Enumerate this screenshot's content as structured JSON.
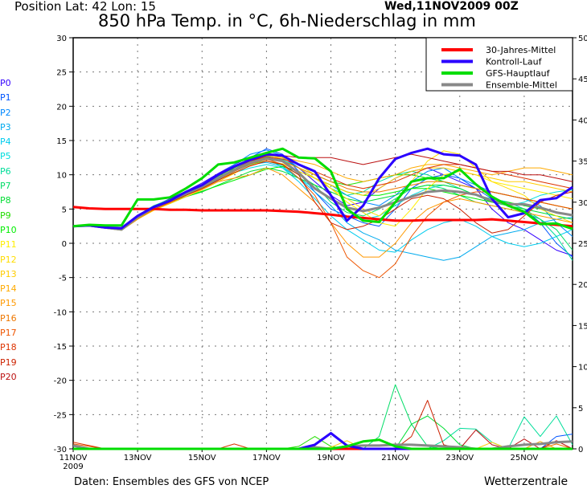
{
  "header": {
    "position": "Position  Lat: 42 Lon: 15",
    "run": "Wed,11NOV2009 00Z",
    "title": "850 hPa Temp. in °C, 6h-Niederschlag in mm"
  },
  "footer": {
    "source": "Daten: Ensembles des GFS von NCEP",
    "brand": "Wetterzentrale"
  },
  "chart_data": {
    "type": "line",
    "title": "850 hPa Temp. in °C, 6h-Niederschlag in mm",
    "grid": true,
    "legend_position": "top-right",
    "left_axis": {
      "unit": "°C",
      "range": [
        -30,
        30
      ],
      "ticks": [
        30,
        25,
        20,
        15,
        10,
        5,
        0,
        -5,
        -10,
        -15,
        -20,
        -25,
        -30
      ]
    },
    "right_axis": {
      "unit": "mm",
      "range": [
        0,
        50
      ],
      "ticks": [
        50,
        45,
        40,
        35,
        30,
        25,
        20,
        15,
        10,
        5,
        0
      ]
    },
    "x_ticks": [
      {
        "label": "11NOV",
        "sub": "2009",
        "day": 11
      },
      {
        "label": "13NOV",
        "day": 13
      },
      {
        "label": "15NOV",
        "day": 15
      },
      {
        "label": "17NOV",
        "day": 17
      },
      {
        "label": "19NOV",
        "day": 19
      },
      {
        "label": "21NOV",
        "day": 21
      },
      {
        "label": "23NOV",
        "day": 23
      },
      {
        "label": "25NOV",
        "day": 25
      }
    ],
    "x": [
      "11NOV00Z",
      "11NOV12Z",
      "12NOV00Z",
      "12NOV12Z",
      "13NOV00Z",
      "13NOV12Z",
      "14NOV00Z",
      "14NOV12Z",
      "15NOV00Z",
      "15NOV12Z",
      "16NOV00Z",
      "16NOV12Z",
      "17NOV00Z",
      "17NOV12Z",
      "18NOV00Z",
      "18NOV12Z",
      "19NOV00Z",
      "19NOV12Z",
      "20NOV00Z",
      "20NOV12Z",
      "21NOV00Z",
      "21NOV12Z",
      "22NOV00Z",
      "22NOV12Z",
      "23NOV00Z",
      "23NOV12Z",
      "24NOV00Z",
      "24NOV12Z",
      "25NOV00Z",
      "25NOV12Z",
      "26NOV00Z",
      "26NOV12Z"
    ],
    "legend": [
      {
        "name": "30-Jahres-Mittel",
        "color": "#ff0000"
      },
      {
        "name": "Kontroll-Lauf",
        "color": "#2a00ff"
      },
      {
        "name": "GFS-Hauptlauf",
        "color": "#00dd00"
      },
      {
        "name": "Ensemble-Mittel",
        "color": "#888888"
      }
    ],
    "members": [
      {
        "name": "P0",
        "color": "#3300ff",
        "temp": [
          2.5,
          2.7,
          2.4,
          2.1,
          3.9,
          5.4,
          6.5,
          7.6,
          8.8,
          10.2,
          11.5,
          12.6,
          13.2,
          12.5,
          11,
          9,
          7,
          5.5,
          6,
          8,
          9.5,
          10.5,
          11,
          10,
          9,
          8,
          5,
          3,
          2,
          0.5,
          -1,
          -1.8
        ]
      },
      {
        "name": "P1",
        "color": "#0055ff",
        "temp": [
          2.5,
          2.6,
          2.3,
          2.0,
          3.6,
          5.0,
          6.0,
          7.0,
          8.0,
          9.2,
          11,
          12.5,
          13.8,
          13,
          10.5,
          7.5,
          5,
          4,
          3,
          2.5,
          5,
          8,
          9.5,
          10,
          9.5,
          8,
          6.5,
          6,
          5,
          3,
          0,
          -2
        ],
        "precip": {
          "30": 1.5,
          "31": 1.8
        }
      },
      {
        "name": "P2",
        "color": "#0088ff",
        "temp": [
          2.5,
          2.6,
          2.2,
          2.0,
          3.9,
          5.3,
          6.3,
          7.5,
          8.6,
          10,
          11.5,
          13,
          13.6,
          12.8,
          11,
          9.5,
          8.5,
          7,
          6,
          5.5,
          7,
          9,
          10.5,
          11,
          9.5,
          8.5,
          7.5,
          7,
          6.5,
          5.5,
          3,
          1
        ]
      },
      {
        "name": "P3",
        "color": "#00aaee",
        "temp": [
          2.5,
          2.5,
          2.2,
          1.9,
          3.5,
          5.0,
          6.1,
          7.1,
          8.0,
          9.2,
          10.5,
          11.5,
          11.8,
          11.2,
          9.5,
          7.5,
          5.5,
          3,
          1.5,
          0.5,
          -1,
          -1.5,
          -2,
          -2.5,
          -2,
          -0.5,
          1,
          1.5,
          2,
          3,
          3.5,
          3.8
        ]
      },
      {
        "name": "P4",
        "color": "#00ccee",
        "temp": [
          2.5,
          2.6,
          2.2,
          2.0,
          3.7,
          5.1,
          6.0,
          7.2,
          8.2,
          9.4,
          10.8,
          12,
          12.6,
          11,
          9,
          6.5,
          4,
          2,
          0.5,
          -1,
          -1.3,
          0.5,
          2,
          3,
          3.5,
          2.5,
          1,
          0,
          -0.5,
          0,
          1,
          2
        ]
      },
      {
        "name": "P5",
        "color": "#00dddd",
        "temp": [
          2.5,
          2.6,
          2.3,
          2.1,
          4,
          5.3,
          6.3,
          7.3,
          8.1,
          9.3,
          10.3,
          11,
          11.5,
          11,
          9.5,
          8,
          6.5,
          5,
          3.5,
          4,
          5.5,
          7,
          8,
          8.5,
          8,
          7,
          6,
          5.5,
          6,
          7,
          7.5,
          7.8
        ]
      },
      {
        "name": "P6",
        "color": "#00dd99",
        "temp": [
          2.5,
          2.7,
          2.4,
          2.2,
          4.1,
          5.5,
          6.4,
          7.4,
          8.5,
          9.8,
          11,
          12,
          12.7,
          12.2,
          11,
          9.5,
          8,
          7,
          7.5,
          9,
          10,
          10.5,
          10,
          9,
          8,
          7,
          6.5,
          6,
          5,
          3.5,
          1,
          -2.5
        ],
        "precip": {
          "23": 1.0,
          "24": 2.5,
          "25": 2.4,
          "26": 0.8,
          "28": 3.9,
          "29": 1.5,
          "30": 4.0,
          "31": 0.5
        }
      },
      {
        "name": "P7",
        "color": "#00dd66",
        "temp": [
          2.5,
          2.6,
          2.3,
          2.0,
          3.8,
          5.2,
          6.2,
          7.3,
          8.3,
          9.5,
          10.6,
          11.6,
          12,
          11.4,
          10,
          8.5,
          6,
          4.5,
          4,
          5,
          6.5,
          8,
          8.5,
          8,
          7,
          6,
          5.5,
          5,
          4.5,
          3.5,
          2,
          -1
        ],
        "precip": {
          "19": 1.5,
          "20": 7.8,
          "21": 3.0,
          "22": 0.3
        }
      },
      {
        "name": "P8",
        "color": "#00dd33",
        "temp": [
          2.5,
          2.6,
          2.3,
          2.0,
          3.6,
          4.9,
          5.8,
          6.8,
          7.5,
          8.5,
          9.5,
          10.5,
          11,
          10.5,
          9.5,
          8.5,
          7.5,
          6.5,
          6,
          6.5,
          7,
          8,
          8.5,
          8.5,
          8,
          7,
          6,
          5.5,
          5,
          4.5,
          4,
          3.5
        ],
        "precip": {
          "21": 3.0,
          "22": 4.0,
          "23": 2.5,
          "24": 0.5
        }
      },
      {
        "name": "P9",
        "color": "#22dd00",
        "temp": [
          2.5,
          2.6,
          2.4,
          2.1,
          3.9,
          5.3,
          6.4,
          7.6,
          8.6,
          9.8,
          11,
          12.2,
          12.8,
          12.5,
          11.5,
          10,
          9,
          8.5,
          9,
          9.5,
          10,
          10,
          9.5,
          9,
          8.5,
          8,
          7.5,
          7,
          6.5,
          6,
          5.5,
          5
        ],
        "precip": {
          "14": 0.3,
          "15": 1.5,
          "16": 0.3
        }
      },
      {
        "name": "P10",
        "color": "#00ee00",
        "temp": [
          2.5,
          2.6,
          2.3,
          2.0,
          3.7,
          5.0,
          6.0,
          6.8,
          7.6,
          8.4,
          9.2,
          10,
          10.8,
          11.2,
          10.5,
          9.5,
          8.5,
          7.5,
          7,
          7,
          7.5,
          8,
          8,
          7.5,
          7,
          6.5,
          6,
          6,
          5.5,
          5,
          4.5,
          4
        ]
      },
      {
        "name": "P11",
        "color": "#ffee00",
        "temp": [
          2.5,
          2.6,
          2.3,
          2.0,
          3.9,
          5.2,
          6.3,
          7.4,
          8.4,
          9.6,
          10.8,
          12,
          12.8,
          12.5,
          11.5,
          10,
          8,
          6,
          4.5,
          3,
          2.5,
          5,
          8,
          10,
          10.5,
          10,
          9,
          8.5,
          8,
          7.5,
          7,
          6.5
        ]
      },
      {
        "name": "P12",
        "color": "#ffdd00",
        "temp": [
          2.5,
          2.6,
          2.3,
          2.0,
          3.8,
          5.1,
          6.2,
          7.3,
          8.3,
          9.5,
          10.6,
          11.8,
          12.3,
          12,
          11,
          9.5,
          8,
          6.5,
          5,
          4,
          6,
          9,
          12,
          13.5,
          13,
          11,
          9,
          8,
          7,
          5,
          4,
          3
        ]
      },
      {
        "name": "P13",
        "color": "#ffcc00",
        "temp": [
          2.5,
          2.6,
          2.2,
          1.9,
          3.5,
          4.8,
          5.8,
          6.8,
          7.8,
          9,
          10.2,
          11.4,
          12,
          11.6,
          10.5,
          9.5,
          8.5,
          7.5,
          7,
          8,
          9.5,
          10.5,
          11,
          11,
          10.5,
          10,
          9.5,
          9,
          9,
          8.5,
          8,
          7.5
        ],
        "precip": {
          "16": 0.2,
          "17": 1.0,
          "26": 0.8
        }
      },
      {
        "name": "P14",
        "color": "#ffaa00",
        "temp": [
          2.5,
          2.6,
          2.3,
          2.0,
          3.7,
          5.0,
          6.0,
          7.0,
          8.0,
          9.2,
          10.5,
          11.7,
          12.4,
          12.6,
          12,
          11.5,
          10.5,
          9.5,
          9,
          9.5,
          10,
          11,
          11.5,
          11.5,
          11,
          10.5,
          10,
          10.5,
          11,
          11,
          10.5,
          10
        ],
        "precip": {
          "29": 0.9
        }
      },
      {
        "name": "P15",
        "color": "#ff9900",
        "temp": [
          2.5,
          2.5,
          2.2,
          1.9,
          3.5,
          4.9,
          5.9,
          7.0,
          7.9,
          9.0,
          9.5,
          10,
          11,
          10,
          8,
          6,
          3,
          0,
          -2,
          -2,
          0,
          3,
          5,
          6,
          6.5,
          6,
          5.5,
          5,
          4.5,
          4,
          3.5,
          3
        ]
      },
      {
        "name": "P16",
        "color": "#ee7700",
        "temp": [
          2.5,
          2.6,
          2.3,
          2.0,
          3.8,
          5.1,
          6.2,
          7.2,
          8.2,
          9.4,
          10.5,
          11.6,
          12.2,
          12,
          11,
          10,
          9,
          8,
          7.5,
          7.5,
          8,
          8.5,
          9,
          9,
          8.5,
          8,
          7.5,
          7,
          6.5,
          6,
          5.5,
          5
        ],
        "precip": {
          "30": 0.6
        }
      },
      {
        "name": "P17",
        "color": "#ee5500",
        "temp": [
          2.5,
          2.6,
          2.3,
          2.0,
          3.9,
          5.3,
          6.3,
          7.4,
          8.4,
          9.6,
          10.8,
          11.8,
          12.3,
          11.5,
          9.5,
          7,
          3,
          -2,
          -4,
          -5,
          -3,
          1,
          4,
          6,
          7,
          7.5,
          7.5,
          7,
          6.5,
          6,
          5.5,
          5
        ],
        "precip": {
          "0": 0.6,
          "1": 0.3
        }
      },
      {
        "name": "P18",
        "color": "#dd3300",
        "temp": [
          2.5,
          2.6,
          2.3,
          2.0,
          3.8,
          5.2,
          6.3,
          7.4,
          8.4,
          9.6,
          10.8,
          12,
          12.6,
          12.3,
          11.5,
          10.5,
          9.5,
          8.5,
          8,
          8.5,
          9,
          10,
          11,
          11.5,
          11.5,
          11,
          10.5,
          10,
          9.5,
          9,
          8.5,
          8
        ],
        "precip": {
          "0": 0.8,
          "1": 0.4,
          "10": 0.6
        }
      },
      {
        "name": "P19",
        "color": "#cc2200",
        "temp": [
          2.5,
          2.6,
          2.3,
          2.0,
          3.7,
          5.0,
          6.0,
          7.0,
          8.0,
          9.2,
          10.3,
          11.3,
          12,
          11.5,
          10,
          6,
          3,
          2,
          2.5,
          3.5,
          5,
          6.5,
          7,
          6.5,
          5,
          3,
          1.5,
          2,
          4,
          6,
          7,
          7.5
        ],
        "precip": {
          "21": 1.5,
          "22": 5.9,
          "23": 0.5
        }
      },
      {
        "name": "P20",
        "color": "#bb1111",
        "temp": [
          2.5,
          2.6,
          2.3,
          2.0,
          3.8,
          5.2,
          6.3,
          7.4,
          8.4,
          9.6,
          10.8,
          12,
          12.8,
          12.8,
          12.5,
          12.5,
          12.5,
          12,
          11.5,
          12,
          12.5,
          13,
          12.5,
          12,
          11.5,
          11,
          10.5,
          10.5,
          10,
          10,
          9.5,
          9
        ],
        "precip": {
          "25": 2.3,
          "26": 0.5,
          "28": 1.2,
          "30": 1.0
        }
      }
    ],
    "series": [
      {
        "name": "Ensemble-Mittel",
        "color": "#888888",
        "temp": [
          2.5,
          2.6,
          2.3,
          2.0,
          3.8,
          5.2,
          6.2,
          7.3,
          8.3,
          9.5,
          10.7,
          11.8,
          12.4,
          12.0,
          10.3,
          8.0,
          6.5,
          5.2,
          4.7,
          5.2,
          6.0,
          6.8,
          7.5,
          7.7,
          7.5,
          7.1,
          6.2,
          5.7,
          5.7,
          5.2,
          4.5,
          4.1
        ],
        "precip": {
          "0": 0.4,
          "15": 0.2,
          "17": 0.3,
          "18": 0.4,
          "19": 0.4,
          "20": 0.5,
          "21": 0.5,
          "22": 0.4,
          "23": 0.3,
          "24": 0.2,
          "27": 0.3,
          "28": 0.5,
          "29": 0.6,
          "30": 0.8,
          "31": 0.9
        }
      },
      {
        "name": "30-Jahres-Mittel",
        "color": "#ff0000",
        "temp": [
          5.3,
          5.1,
          5.0,
          5.0,
          5.0,
          5.0,
          4.9,
          4.9,
          4.8,
          4.8,
          4.8,
          4.8,
          4.8,
          4.7,
          4.6,
          4.4,
          4.2,
          3.9,
          3.7,
          3.5,
          3.3,
          3.3,
          3.4,
          3.4,
          3.4,
          3.4,
          3.5,
          3.3,
          3.1,
          2.9,
          2.7,
          2.5
        ]
      },
      {
        "name": "Kontroll-Lauf",
        "color": "#2a00ff",
        "temp": [
          2.5,
          2.6,
          2.3,
          2.2,
          4,
          5.3,
          6.2,
          7.5,
          8.5,
          10,
          11.2,
          12.2,
          13,
          12.8,
          11.5,
          10.5,
          7,
          3.3,
          5.5,
          9.5,
          12.3,
          13.2,
          13.8,
          13.0,
          12.8,
          11.5,
          6.5,
          3.8,
          4.4,
          6.3,
          6.6,
          8.2
        ],
        "precip": {
          "15": 0.5,
          "16": 1.9,
          "17": 0.4
        }
      },
      {
        "name": "GFS-Hauptlauf",
        "color": "#00dd00",
        "temp": [
          2.5,
          2.7,
          2.6,
          2.6,
          6.4,
          6.4,
          6.7,
          8,
          9.5,
          11.5,
          11.8,
          12.5,
          13.2,
          13.8,
          12.5,
          12.4,
          10.5,
          5,
          3.3,
          3.1,
          6,
          9,
          9.5,
          9.5,
          10.8,
          8.6,
          6.8,
          5.5,
          4.6,
          2.8,
          2.9,
          2.1
        ],
        "precip": {
          "17": 0.3,
          "18": 0.9,
          "19": 1.1,
          "20": 0.3
        }
      }
    ]
  }
}
